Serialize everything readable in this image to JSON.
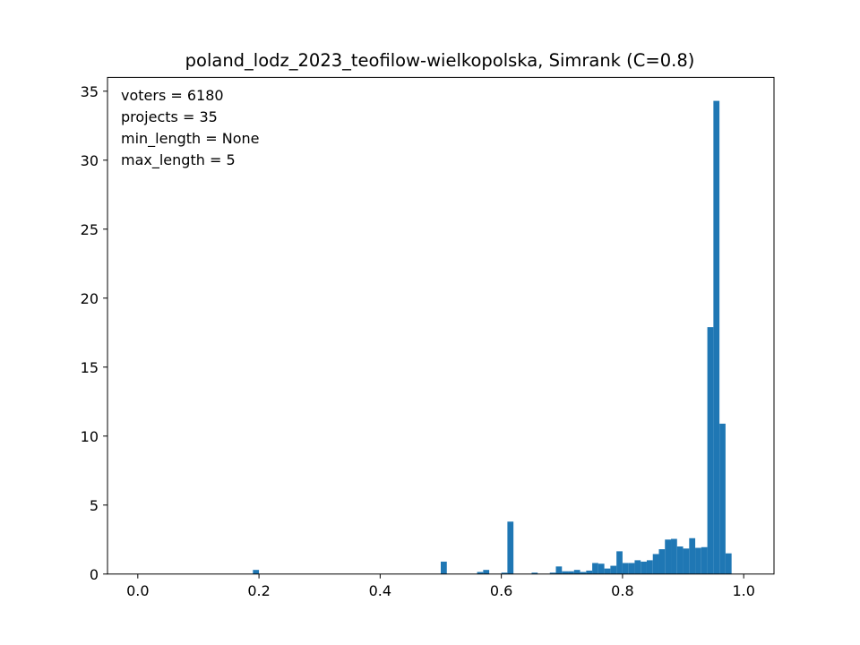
{
  "chart_data": {
    "type": "bar",
    "title": "poland_lodz_2023_teofilow-wielkopolska, Simrank (C=0.8)",
    "xlabel": "",
    "ylabel": "",
    "xlim": [
      -0.05,
      1.05
    ],
    "ylim": [
      0,
      36
    ],
    "xticks": [
      0.0,
      0.2,
      0.4,
      0.6,
      0.8,
      1.0
    ],
    "xtick_labels": [
      "0.0",
      "0.2",
      "0.4",
      "0.6",
      "0.8",
      "1.0"
    ],
    "yticks": [
      0,
      5,
      10,
      15,
      20,
      25,
      30,
      35
    ],
    "ytick_labels": [
      "0",
      "5",
      "10",
      "15",
      "20",
      "25",
      "30",
      "35"
    ],
    "grid": false,
    "bar_color": "#1f77b4",
    "annotations": [
      "voters = 6180",
      "projects = 35",
      "min_length = None",
      "max_length = 5"
    ],
    "bars": [
      {
        "x0": 0.19,
        "x1": 0.2,
        "value": 0.3
      },
      {
        "x0": 0.5,
        "x1": 0.51,
        "value": 0.9
      },
      {
        "x0": 0.56,
        "x1": 0.57,
        "value": 0.15
      },
      {
        "x0": 0.57,
        "x1": 0.58,
        "value": 0.3
      },
      {
        "x0": 0.6,
        "x1": 0.61,
        "value": 0.1
      },
      {
        "x0": 0.61,
        "x1": 0.62,
        "value": 3.8
      },
      {
        "x0": 0.65,
        "x1": 0.66,
        "value": 0.1
      },
      {
        "x0": 0.68,
        "x1": 0.69,
        "value": 0.1
      },
      {
        "x0": 0.69,
        "x1": 0.7,
        "value": 0.55
      },
      {
        "x0": 0.7,
        "x1": 0.71,
        "value": 0.2
      },
      {
        "x0": 0.71,
        "x1": 0.72,
        "value": 0.2
      },
      {
        "x0": 0.72,
        "x1": 0.73,
        "value": 0.3
      },
      {
        "x0": 0.73,
        "x1": 0.74,
        "value": 0.15
      },
      {
        "x0": 0.74,
        "x1": 0.75,
        "value": 0.25
      },
      {
        "x0": 0.75,
        "x1": 0.76,
        "value": 0.8
      },
      {
        "x0": 0.76,
        "x1": 0.77,
        "value": 0.75
      },
      {
        "x0": 0.77,
        "x1": 0.78,
        "value": 0.4
      },
      {
        "x0": 0.78,
        "x1": 0.79,
        "value": 0.6
      },
      {
        "x0": 0.79,
        "x1": 0.8,
        "value": 1.65
      },
      {
        "x0": 0.8,
        "x1": 0.81,
        "value": 0.8
      },
      {
        "x0": 0.81,
        "x1": 0.82,
        "value": 0.8
      },
      {
        "x0": 0.82,
        "x1": 0.83,
        "value": 1.0
      },
      {
        "x0": 0.83,
        "x1": 0.84,
        "value": 0.9
      },
      {
        "x0": 0.84,
        "x1": 0.85,
        "value": 1.0
      },
      {
        "x0": 0.85,
        "x1": 0.86,
        "value": 1.45
      },
      {
        "x0": 0.86,
        "x1": 0.87,
        "value": 1.8
      },
      {
        "x0": 0.87,
        "x1": 0.88,
        "value": 2.5
      },
      {
        "x0": 0.88,
        "x1": 0.89,
        "value": 2.55
      },
      {
        "x0": 0.89,
        "x1": 0.9,
        "value": 2.0
      },
      {
        "x0": 0.9,
        "x1": 0.91,
        "value": 1.85
      },
      {
        "x0": 0.91,
        "x1": 0.92,
        "value": 2.6
      },
      {
        "x0": 0.92,
        "x1": 0.93,
        "value": 1.9
      },
      {
        "x0": 0.93,
        "x1": 0.94,
        "value": 1.95
      },
      {
        "x0": 0.94,
        "x1": 0.95,
        "value": 17.9
      },
      {
        "x0": 0.95,
        "x1": 0.96,
        "value": 34.3
      },
      {
        "x0": 0.96,
        "x1": 0.97,
        "value": 10.9
      },
      {
        "x0": 0.97,
        "x1": 0.98,
        "value": 1.5
      }
    ]
  }
}
